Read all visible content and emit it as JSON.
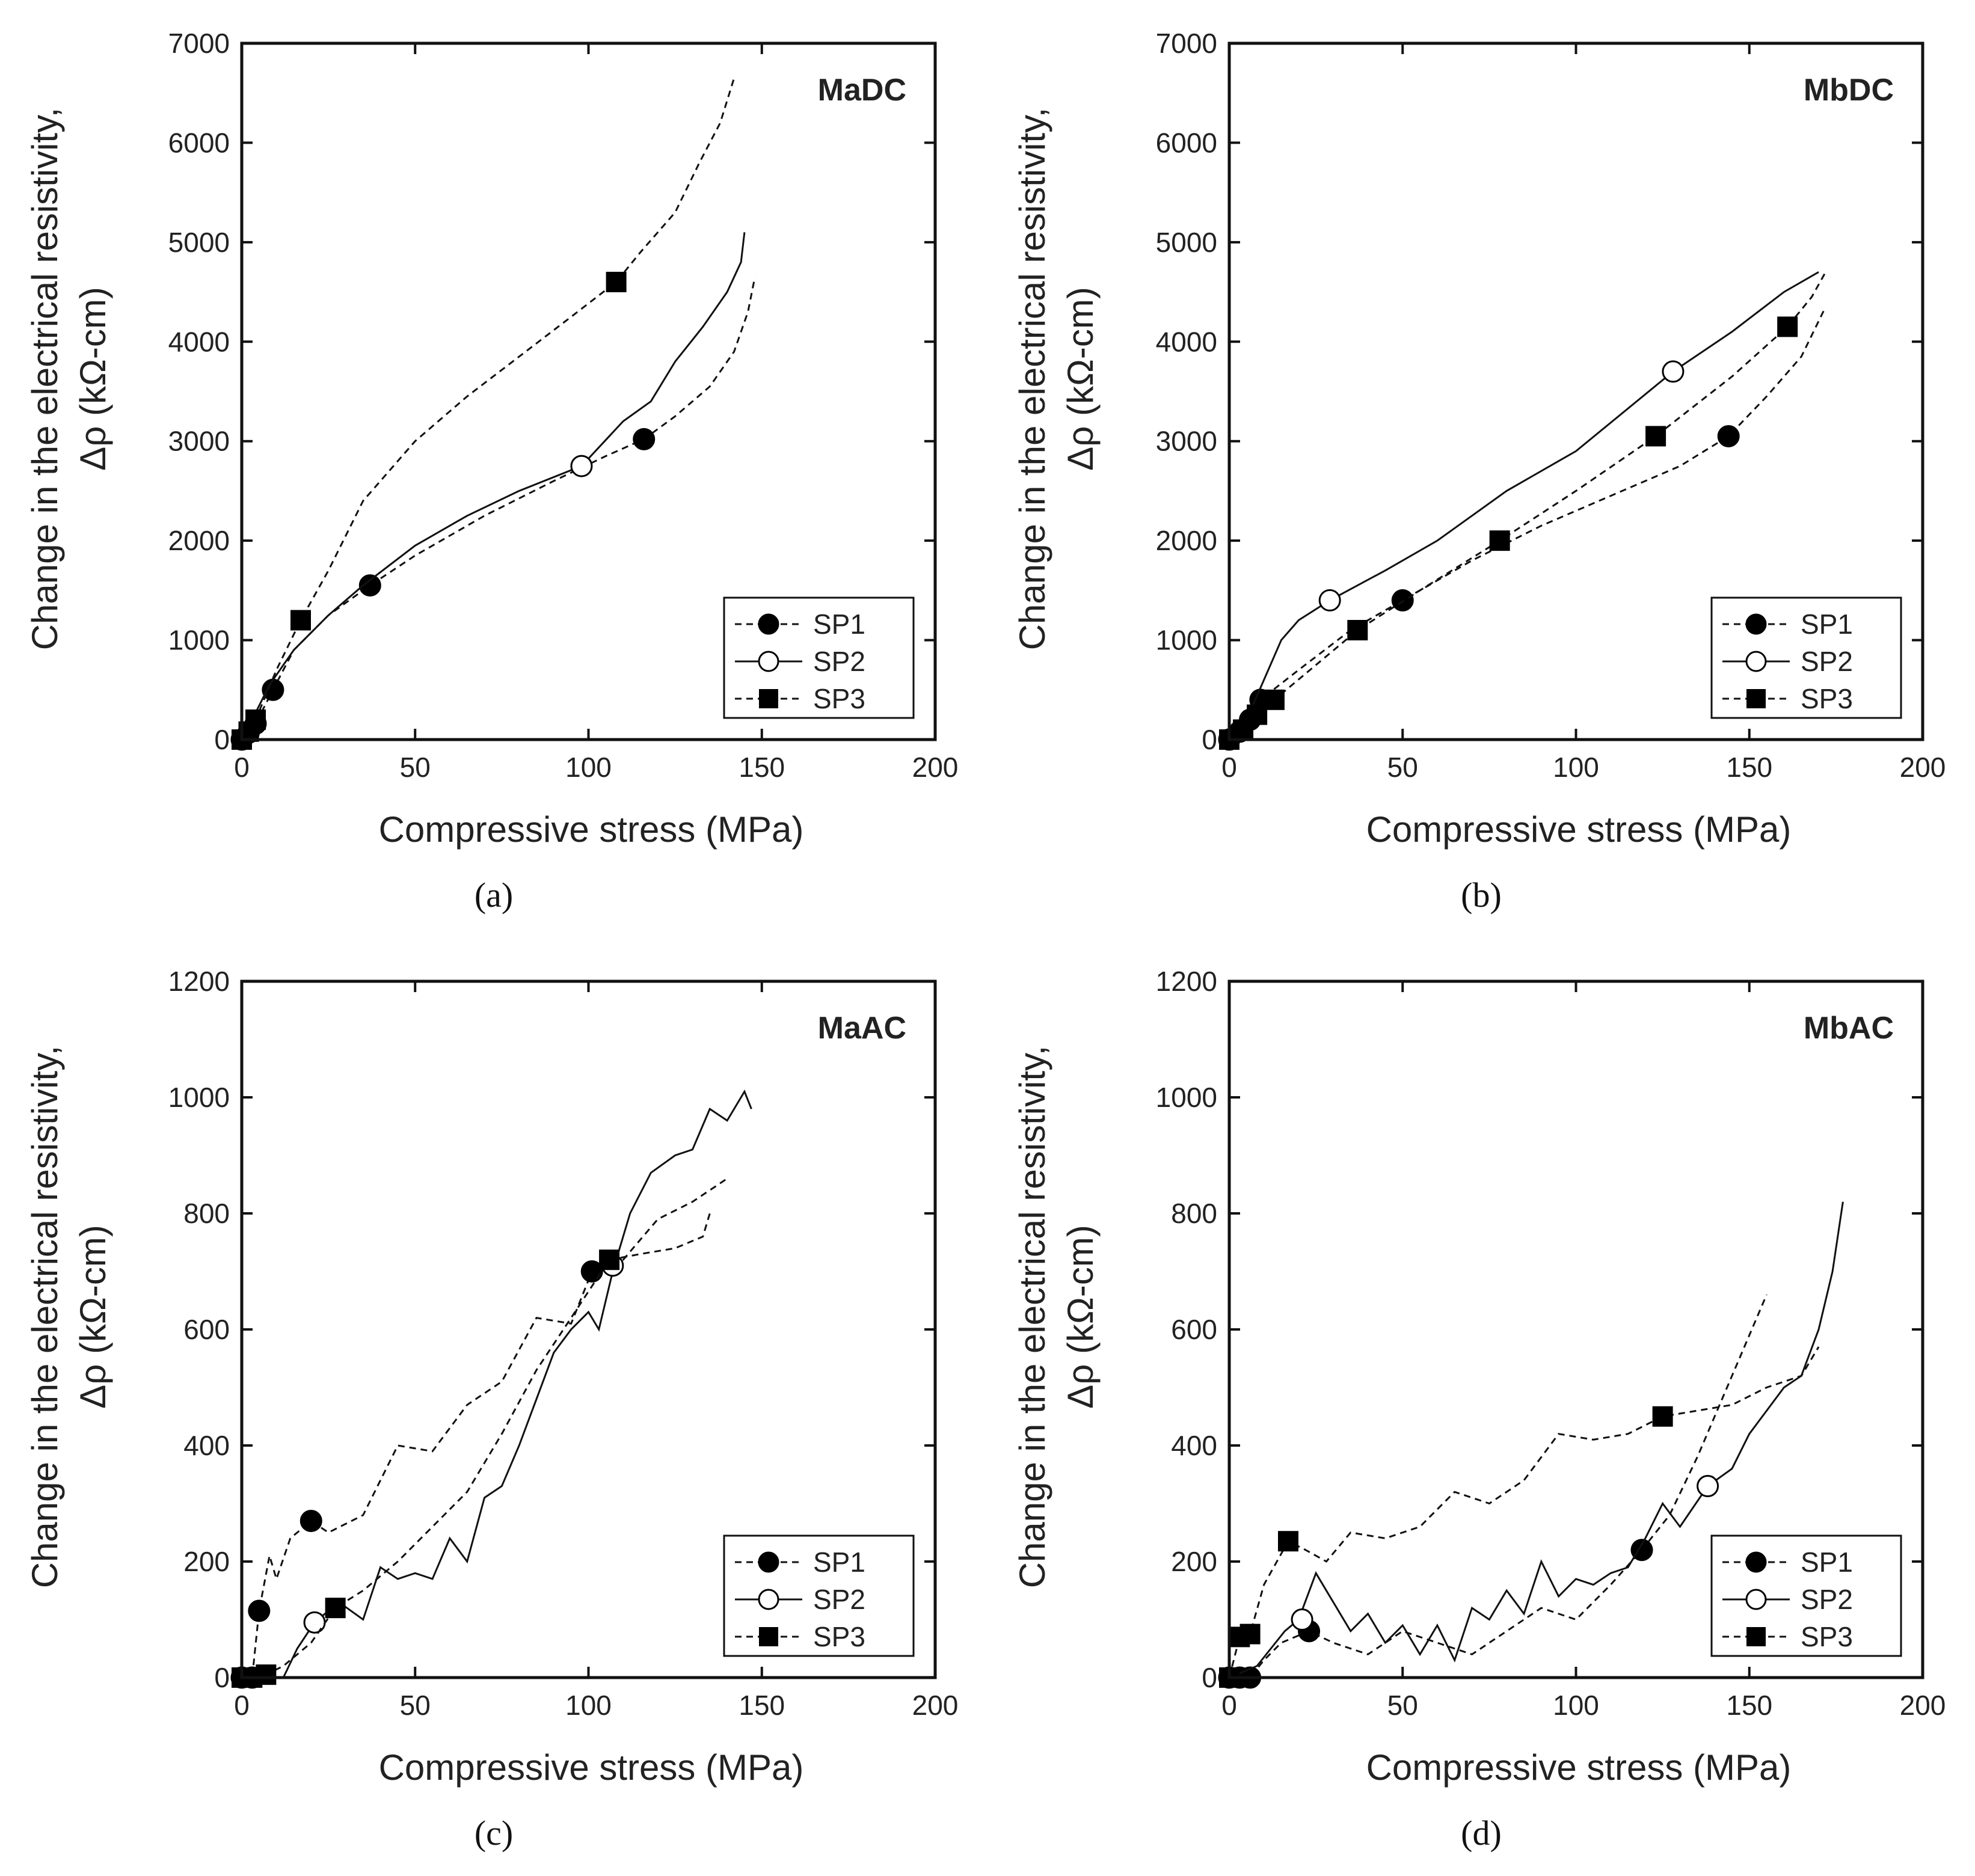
{
  "captions": [
    "(a)",
    "(b)",
    "(c)",
    "(d)"
  ],
  "chart_data": [
    {
      "type": "line",
      "title": "MaDC",
      "xlabel": "Compressive stress (MPa)",
      "ylabel_line1": "Change in the electrical resistivity,",
      "ylabel_line2": "Δρ (kΩ-cm)",
      "xlim": [
        0,
        200
      ],
      "ylim": [
        0,
        7000
      ],
      "xticks": [
        0,
        50,
        100,
        150,
        200
      ],
      "yticks": [
        0,
        1000,
        2000,
        3000,
        4000,
        5000,
        6000,
        7000
      ],
      "legend": {
        "position": "bottom-right",
        "entries": [
          "SP1",
          "SP2",
          "SP3"
        ]
      },
      "series": [
        {
          "name": "SP1",
          "marker": "filled-circle",
          "style": "dashed",
          "x": [
            0,
            2,
            4,
            9,
            15,
            25,
            37,
            50,
            70,
            90,
            105,
            116,
            125,
            135,
            142,
            146,
            148
          ],
          "y": [
            0,
            70,
            160,
            500,
            900,
            1250,
            1550,
            1850,
            2250,
            2600,
            2850,
            3020,
            3250,
            3550,
            3900,
            4300,
            4650
          ],
          "mx": [
            0,
            2,
            4,
            9,
            37,
            116
          ],
          "my": [
            0,
            70,
            160,
            500,
            1550,
            3020
          ]
        },
        {
          "name": "SP2",
          "marker": "open-circle",
          "style": "solid",
          "x": [
            0,
            3,
            8,
            15,
            25,
            35,
            50,
            65,
            80,
            98,
            110,
            118,
            125,
            133,
            140,
            144,
            145
          ],
          "y": [
            0,
            200,
            550,
            900,
            1250,
            1550,
            1950,
            2250,
            2500,
            2750,
            3200,
            3400,
            3800,
            4150,
            4500,
            4800,
            5100
          ],
          "mx": [
            98
          ],
          "my": [
            2750
          ]
        },
        {
          "name": "SP3",
          "marker": "filled-square",
          "style": "dashed",
          "x": [
            0,
            2,
            4,
            10,
            17,
            25,
            35,
            50,
            65,
            80,
            95,
            108,
            115,
            125,
            132,
            138,
            142
          ],
          "y": [
            0,
            80,
            200,
            700,
            1200,
            1700,
            2400,
            3000,
            3450,
            3850,
            4250,
            4600,
            4900,
            5300,
            5800,
            6200,
            6650
          ],
          "mx": [
            0,
            2,
            4,
            17,
            108
          ],
          "my": [
            0,
            80,
            200,
            1200,
            4600
          ]
        }
      ]
    },
    {
      "type": "line",
      "title": "MbDC",
      "xlabel": "Compressive stress (MPa)",
      "ylabel_line1": "Change in the electrical resistivity,",
      "ylabel_line2": "Δρ (kΩ-cm)",
      "xlim": [
        0,
        200
      ],
      "ylim": [
        0,
        7000
      ],
      "xticks": [
        0,
        50,
        100,
        150,
        200
      ],
      "yticks": [
        0,
        1000,
        2000,
        3000,
        4000,
        5000,
        6000,
        7000
      ],
      "legend": {
        "position": "bottom-right",
        "entries": [
          "SP1",
          "SP2",
          "SP3"
        ]
      },
      "series": [
        {
          "name": "SP1",
          "marker": "filled-circle",
          "style": "dashed",
          "x": [
            0,
            3,
            6,
            9,
            20,
            35,
            50,
            70,
            90,
            110,
            130,
            144,
            155,
            165,
            172
          ],
          "y": [
            0,
            80,
            200,
            400,
            700,
            1100,
            1400,
            1800,
            2150,
            2450,
            2750,
            3050,
            3450,
            3850,
            4350
          ],
          "mx": [
            0,
            3,
            6,
            9,
            50,
            144
          ],
          "my": [
            0,
            80,
            200,
            400,
            1400,
            3050
          ]
        },
        {
          "name": "SP2",
          "marker": "open-circle",
          "style": "solid",
          "x": [
            0,
            5,
            10,
            15,
            20,
            29,
            45,
            60,
            80,
            100,
            128,
            145,
            160,
            170
          ],
          "y": [
            0,
            200,
            600,
            1000,
            1200,
            1400,
            1700,
            2000,
            2500,
            2900,
            3700,
            4100,
            4500,
            4700
          ],
          "mx": [
            29,
            128
          ],
          "my": [
            1400,
            3700
          ]
        },
        {
          "name": "SP3",
          "marker": "filled-square",
          "style": "dashed",
          "x": [
            0,
            4,
            8,
            13,
            25,
            37,
            55,
            78,
            100,
            123,
            145,
            161,
            168,
            172
          ],
          "y": [
            0,
            100,
            250,
            400,
            750,
            1100,
            1500,
            2000,
            2500,
            3050,
            3650,
            4150,
            4450,
            4700
          ],
          "mx": [
            0,
            4,
            8,
            13,
            37,
            78,
            123,
            161
          ],
          "my": [
            0,
            100,
            250,
            400,
            1100,
            2000,
            3050,
            4150
          ]
        }
      ]
    },
    {
      "type": "line",
      "title": "MaAC",
      "xlabel": "Compressive stress (MPa)",
      "ylabel_line1": "Change in the electrical resistivity,",
      "ylabel_line2": "Δρ (kΩ-cm)",
      "xlim": [
        0,
        200
      ],
      "ylim": [
        0,
        1200
      ],
      "xticks": [
        0,
        50,
        100,
        150,
        200
      ],
      "yticks": [
        0,
        200,
        400,
        600,
        800,
        1000,
        1200
      ],
      "legend": {
        "position": "bottom-right",
        "entries": [
          "SP1",
          "SP2",
          "SP3"
        ]
      },
      "series": [
        {
          "name": "SP1",
          "marker": "filled-circle",
          "style": "dashed",
          "x": [
            0,
            3,
            5,
            8,
            10,
            14,
            20,
            25,
            35,
            45,
            55,
            65,
            75,
            85,
            95,
            101,
            110,
            120,
            130,
            140
          ],
          "y": [
            0,
            0,
            115,
            210,
            170,
            240,
            270,
            250,
            280,
            400,
            390,
            470,
            510,
            620,
            610,
            700,
            720,
            790,
            820,
            860
          ],
          "mx": [
            0,
            3,
            5,
            20,
            101
          ],
          "my": [
            0,
            0,
            115,
            270,
            700
          ]
        },
        {
          "name": "SP2",
          "marker": "open-circle",
          "style": "solid",
          "x": [
            0,
            12,
            16,
            21,
            28,
            35,
            40,
            45,
            50,
            55,
            60,
            65,
            70,
            75,
            80,
            85,
            90,
            95,
            100,
            103,
            107,
            112,
            118,
            125,
            130,
            135,
            140,
            145,
            147
          ],
          "y": [
            0,
            0,
            50,
            95,
            130,
            100,
            190,
            170,
            180,
            170,
            240,
            200,
            310,
            330,
            400,
            480,
            560,
            600,
            630,
            600,
            700,
            800,
            870,
            900,
            910,
            980,
            960,
            1010,
            980
          ],
          "mx": [
            21,
            107
          ],
          "my": [
            95,
            710
          ]
        },
        {
          "name": "SP3",
          "marker": "filled-square",
          "style": "dashed",
          "x": [
            0,
            3,
            7,
            12,
            20,
            27,
            35,
            45,
            55,
            65,
            75,
            85,
            95,
            106,
            115,
            125,
            133,
            135
          ],
          "y": [
            0,
            0,
            5,
            20,
            60,
            120,
            150,
            200,
            260,
            320,
            420,
            530,
            620,
            720,
            730,
            740,
            760,
            800
          ],
          "mx": [
            0,
            3,
            7,
            27,
            106
          ],
          "my": [
            0,
            0,
            5,
            120,
            720
          ]
        }
      ]
    },
    {
      "type": "line",
      "title": "MbAC",
      "xlabel": "Compressive stress (MPa)",
      "ylabel_line1": "Change in the electrical resistivity,",
      "ylabel_line2": "Δρ (kΩ-cm)",
      "xlim": [
        0,
        200
      ],
      "ylim": [
        0,
        1200
      ],
      "xticks": [
        0,
        50,
        100,
        150,
        200
      ],
      "yticks": [
        0,
        200,
        400,
        600,
        800,
        1000,
        1200
      ],
      "legend": {
        "position": "bottom-right",
        "entries": [
          "SP1",
          "SP2",
          "SP3"
        ]
      },
      "series": [
        {
          "name": "SP1",
          "marker": "filled-circle",
          "style": "dashed",
          "x": [
            0,
            3,
            6,
            10,
            15,
            23,
            30,
            40,
            50,
            60,
            70,
            80,
            90,
            100,
            110,
            119,
            127,
            135,
            145,
            155
          ],
          "y": [
            0,
            0,
            0,
            30,
            60,
            80,
            60,
            40,
            80,
            60,
            40,
            80,
            120,
            100,
            160,
            220,
            280,
            380,
            520,
            660
          ],
          "mx": [
            0,
            3,
            6,
            23,
            119
          ],
          "my": [
            0,
            0,
            0,
            80,
            220
          ]
        },
        {
          "name": "SP2",
          "marker": "open-circle",
          "style": "solid",
          "x": [
            0,
            8,
            12,
            16,
            20,
            25,
            30,
            35,
            40,
            45,
            50,
            55,
            60,
            65,
            70,
            75,
            80,
            85,
            90,
            95,
            100,
            105,
            110,
            115,
            120,
            125,
            130,
            138,
            145,
            150,
            155,
            160,
            165,
            170,
            174,
            177
          ],
          "y": [
            0,
            20,
            50,
            80,
            100,
            180,
            130,
            80,
            110,
            60,
            90,
            40,
            90,
            30,
            120,
            100,
            150,
            110,
            200,
            140,
            170,
            160,
            180,
            190,
            240,
            300,
            260,
            330,
            360,
            420,
            460,
            500,
            520,
            600,
            700,
            820
          ],
          "mx": [
            21,
            138
          ],
          "my": [
            100,
            330
          ]
        },
        {
          "name": "SP3",
          "marker": "filled-square",
          "style": "dashed",
          "x": [
            0,
            3,
            6,
            10,
            17,
            22,
            28,
            35,
            45,
            55,
            65,
            75,
            85,
            95,
            105,
            115,
            125,
            135,
            145,
            155,
            165,
            170
          ],
          "y": [
            0,
            70,
            75,
            160,
            235,
            220,
            200,
            250,
            240,
            260,
            320,
            300,
            340,
            420,
            410,
            420,
            450,
            460,
            470,
            500,
            520,
            570
          ],
          "mx": [
            0,
            3,
            6,
            17,
            125
          ],
          "my": [
            0,
            70,
            75,
            235,
            450
          ]
        }
      ]
    }
  ]
}
